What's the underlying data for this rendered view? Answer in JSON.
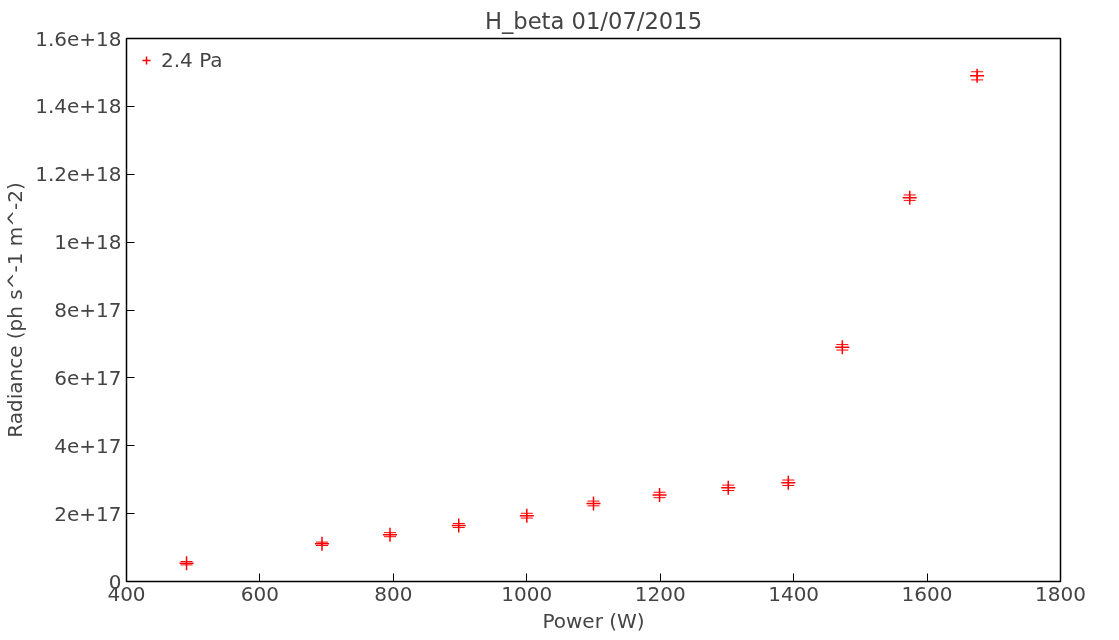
{
  "chart_data": {
    "type": "scatter",
    "title": "H_beta 01/07/2015",
    "xlabel": "Power (W)",
    "ylabel": "Radiance (ph s^-1 m^-2)",
    "x": [
      490,
      693,
      795,
      898,
      1000,
      1100,
      1199,
      1302,
      1392,
      1473,
      1574,
      1675
    ],
    "series": [
      {
        "name": "2.4 Pa",
        "color": "#ff0000",
        "values": [
          5.4e+16,
          1.11e+17,
          1.38e+17,
          1.65e+17,
          1.94e+17,
          2.3e+17,
          2.55e+17,
          2.76e+17,
          2.91e+17,
          6.9e+17,
          1.131e+18,
          1.49e+18
        ],
        "errors": [
          5000000000000000.0,
          5000000000000000.0,
          6000000000000000.0,
          6000000000000000.0,
          7000000000000000.0,
          7000000000000000.0,
          8000000000000000.0,
          8000000000000000.0,
          8000000000000000.0,
          8000000000000000.0,
          8000000000000000.0,
          1.2e+16
        ]
      }
    ],
    "xlim": [
      400,
      1800
    ],
    "xticks": [
      400,
      600,
      800,
      1000,
      1200,
      1400,
      1600,
      1800
    ],
    "ylim": [
      0,
      1.6e+18
    ],
    "yticks": [
      0,
      {
        "value": 2e+17,
        "label": "2e+17"
      },
      {
        "value": 4e+17,
        "label": "4e+17"
      },
      {
        "value": 6e+17,
        "label": "6e+17"
      },
      {
        "value": 8e+17,
        "label": "8e+17"
      },
      {
        "value": 1e+18,
        "label": "1e+18"
      },
      {
        "value": 1.2e+18,
        "label": "1.2e+18"
      },
      {
        "value": 1.4e+18,
        "label": "1.4e+18"
      },
      {
        "value": 1.6e+18,
        "label": "1.6e+18"
      }
    ],
    "grid": false,
    "legend": "top left",
    "marker": "cross"
  }
}
